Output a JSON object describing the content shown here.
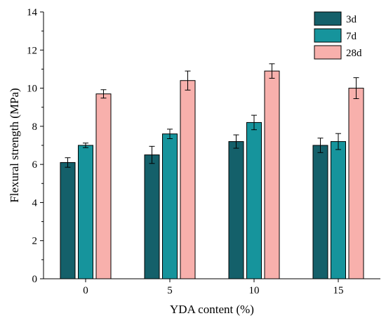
{
  "chart_data": {
    "type": "bar",
    "xlabel": "YDA content (%)",
    "ylabel": "Flexural strength (MPa)",
    "categories": [
      "0",
      "5",
      "10",
      "15"
    ],
    "ylim": [
      0,
      14
    ],
    "yticks": [
      0,
      2,
      4,
      6,
      8,
      10,
      12,
      14
    ],
    "grid": false,
    "legend_position": "top-right",
    "series": [
      {
        "name": "3d",
        "color": "#14606a",
        "values": [
          6.1,
          6.5,
          7.2,
          7.0
        ],
        "errors": [
          0.25,
          0.45,
          0.35,
          0.38
        ]
      },
      {
        "name": "7d",
        "color": "#16949c",
        "values": [
          7.0,
          7.6,
          8.2,
          7.2
        ],
        "errors": [
          0.12,
          0.25,
          0.38,
          0.42
        ]
      },
      {
        "name": "28d",
        "color": "#f8b0ac",
        "values": [
          9.7,
          10.4,
          10.9,
          10.0
        ],
        "errors": [
          0.22,
          0.5,
          0.38,
          0.55
        ]
      }
    ]
  }
}
